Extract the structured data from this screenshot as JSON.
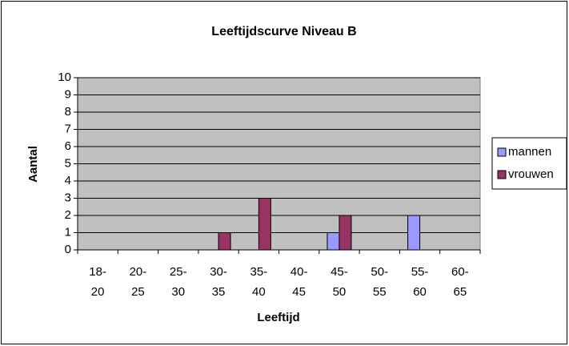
{
  "chart_data": {
    "type": "bar",
    "title": "Leeftijdscurve Niveau B",
    "x_label": "Leeftijd",
    "y_label": "Aantal",
    "categories": [
      "18-20",
      "20-25",
      "25-30",
      "30-35",
      "35-40",
      "40-45",
      "45-50",
      "50-55",
      "55-60",
      "60-65"
    ],
    "series": [
      {
        "name": "mannen",
        "color": "#9999ff",
        "values": [
          0,
          0,
          0,
          0,
          0,
          0,
          1,
          0,
          2,
          0
        ]
      },
      {
        "name": "vrouwen",
        "color": "#993366",
        "values": [
          0,
          0,
          0,
          1,
          3,
          0,
          2,
          0,
          0,
          0
        ]
      }
    ],
    "ylim": [
      0,
      10
    ],
    "yticks": [
      0,
      1,
      2,
      3,
      4,
      5,
      6,
      7,
      8,
      9,
      10
    ],
    "grid": true,
    "legend": "right"
  }
}
